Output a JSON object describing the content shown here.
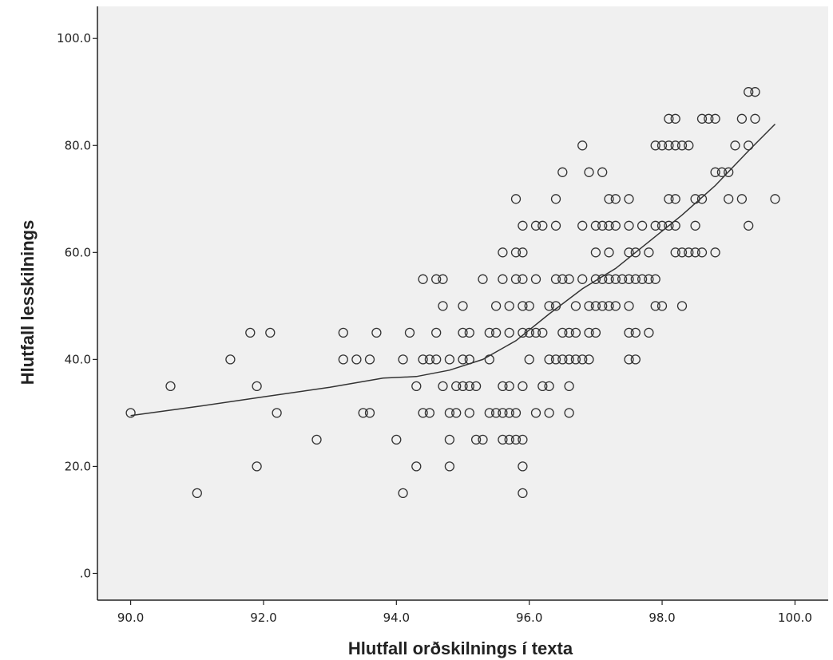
{
  "chart_data": {
    "type": "scatter",
    "title": "",
    "xlabel": "Hlutfall orðskilnings í texta",
    "ylabel": "Hlutfall lesskilnings",
    "xlim": [
      89.5,
      100.5
    ],
    "ylim": [
      -5,
      106
    ],
    "x_ticks": [
      90,
      92,
      94,
      96,
      98,
      100
    ],
    "x_tick_labels": [
      "90.0",
      "92.0",
      "94.0",
      "96.0",
      "98.0",
      "100.0"
    ],
    "y_ticks": [
      0,
      20,
      40,
      60,
      80,
      100
    ],
    "y_tick_labels": [
      ".0",
      "20.0",
      "40.0",
      "60.0",
      "80.0",
      "100.0"
    ],
    "grid": false,
    "legend": "none",
    "colors": {
      "background": "#f0f0f0",
      "marker": "#333333",
      "line": "#333333",
      "axis": "#222222"
    },
    "points": [
      [
        90.0,
        30
      ],
      [
        90.6,
        35
      ],
      [
        91.0,
        15
      ],
      [
        91.5,
        40
      ],
      [
        91.8,
        45
      ],
      [
        91.9,
        35
      ],
      [
        91.9,
        20
      ],
      [
        92.1,
        45
      ],
      [
        92.2,
        30
      ],
      [
        92.8,
        25
      ],
      [
        93.2,
        45
      ],
      [
        93.2,
        40
      ],
      [
        93.4,
        40
      ],
      [
        93.5,
        30
      ],
      [
        93.6,
        40
      ],
      [
        93.6,
        30
      ],
      [
        93.7,
        45
      ],
      [
        94.0,
        25
      ],
      [
        94.1,
        15
      ],
      [
        94.1,
        40
      ],
      [
        94.2,
        45
      ],
      [
        94.3,
        35
      ],
      [
        94.3,
        20
      ],
      [
        94.4,
        55
      ],
      [
        94.4,
        40
      ],
      [
        94.4,
        30
      ],
      [
        94.5,
        40
      ],
      [
        94.5,
        30
      ],
      [
        94.6,
        55
      ],
      [
        94.6,
        45
      ],
      [
        94.6,
        40
      ],
      [
        94.7,
        55
      ],
      [
        94.7,
        50
      ],
      [
        94.7,
        35
      ],
      [
        94.8,
        40
      ],
      [
        94.8,
        30
      ],
      [
        94.8,
        25
      ],
      [
        94.8,
        20
      ],
      [
        94.9,
        35
      ],
      [
        94.9,
        30
      ],
      [
        95.0,
        50
      ],
      [
        95.0,
        45
      ],
      [
        95.0,
        40
      ],
      [
        95.0,
        35
      ],
      [
        95.1,
        45
      ],
      [
        95.1,
        40
      ],
      [
        95.1,
        35
      ],
      [
        95.1,
        30
      ],
      [
        95.2,
        35
      ],
      [
        95.2,
        25
      ],
      [
        95.3,
        55
      ],
      [
        95.3,
        25
      ],
      [
        95.4,
        45
      ],
      [
        95.4,
        40
      ],
      [
        95.4,
        30
      ],
      [
        95.5,
        50
      ],
      [
        95.5,
        45
      ],
      [
        95.5,
        30
      ],
      [
        95.6,
        60
      ],
      [
        95.6,
        55
      ],
      [
        95.6,
        35
      ],
      [
        95.6,
        30
      ],
      [
        95.6,
        25
      ],
      [
        95.7,
        50
      ],
      [
        95.7,
        45
      ],
      [
        95.7,
        35
      ],
      [
        95.7,
        30
      ],
      [
        95.7,
        25
      ],
      [
        95.8,
        70
      ],
      [
        95.8,
        60
      ],
      [
        95.8,
        55
      ],
      [
        95.8,
        30
      ],
      [
        95.8,
        25
      ],
      [
        95.9,
        65
      ],
      [
        95.9,
        60
      ],
      [
        95.9,
        55
      ],
      [
        95.9,
        50
      ],
      [
        95.9,
        45
      ],
      [
        95.9,
        35
      ],
      [
        95.9,
        25
      ],
      [
        95.9,
        20
      ],
      [
        95.9,
        15
      ],
      [
        96.0,
        50
      ],
      [
        96.0,
        45
      ],
      [
        96.0,
        40
      ],
      [
        96.1,
        65
      ],
      [
        96.1,
        55
      ],
      [
        96.1,
        45
      ],
      [
        96.1,
        30
      ],
      [
        96.2,
        65
      ],
      [
        96.2,
        45
      ],
      [
        96.2,
        35
      ],
      [
        96.3,
        50
      ],
      [
        96.3,
        40
      ],
      [
        96.3,
        35
      ],
      [
        96.3,
        30
      ],
      [
        96.4,
        70
      ],
      [
        96.4,
        65
      ],
      [
        96.4,
        55
      ],
      [
        96.4,
        50
      ],
      [
        96.4,
        40
      ],
      [
        96.5,
        75
      ],
      [
        96.5,
        55
      ],
      [
        96.5,
        45
      ],
      [
        96.5,
        40
      ],
      [
        96.6,
        55
      ],
      [
        96.6,
        45
      ],
      [
        96.6,
        40
      ],
      [
        96.6,
        35
      ],
      [
        96.6,
        30
      ],
      [
        96.7,
        50
      ],
      [
        96.7,
        45
      ],
      [
        96.7,
        40
      ],
      [
        96.8,
        80
      ],
      [
        96.8,
        65
      ],
      [
        96.8,
        55
      ],
      [
        96.8,
        40
      ],
      [
        96.9,
        75
      ],
      [
        96.9,
        50
      ],
      [
        96.9,
        45
      ],
      [
        96.9,
        40
      ],
      [
        97.0,
        65
      ],
      [
        97.0,
        60
      ],
      [
        97.0,
        55
      ],
      [
        97.0,
        50
      ],
      [
        97.0,
        45
      ],
      [
        97.1,
        75
      ],
      [
        97.1,
        65
      ],
      [
        97.1,
        55
      ],
      [
        97.1,
        50
      ],
      [
        97.2,
        70
      ],
      [
        97.2,
        65
      ],
      [
        97.2,
        60
      ],
      [
        97.2,
        55
      ],
      [
        97.2,
        50
      ],
      [
        97.3,
        70
      ],
      [
        97.3,
        65
      ],
      [
        97.3,
        55
      ],
      [
        97.3,
        50
      ],
      [
        97.4,
        55
      ],
      [
        97.5,
        70
      ],
      [
        97.5,
        65
      ],
      [
        97.5,
        60
      ],
      [
        97.5,
        55
      ],
      [
        97.5,
        50
      ],
      [
        97.5,
        45
      ],
      [
        97.5,
        40
      ],
      [
        97.6,
        60
      ],
      [
        97.6,
        55
      ],
      [
        97.6,
        45
      ],
      [
        97.6,
        40
      ],
      [
        97.7,
        65
      ],
      [
        97.7,
        55
      ],
      [
        97.8,
        60
      ],
      [
        97.8,
        55
      ],
      [
        97.8,
        45
      ],
      [
        97.9,
        80
      ],
      [
        97.9,
        65
      ],
      [
        97.9,
        55
      ],
      [
        97.9,
        50
      ],
      [
        98.0,
        80
      ],
      [
        98.0,
        65
      ],
      [
        98.0,
        50
      ],
      [
        98.1,
        85
      ],
      [
        98.1,
        80
      ],
      [
        98.1,
        70
      ],
      [
        98.1,
        65
      ],
      [
        98.2,
        85
      ],
      [
        98.2,
        80
      ],
      [
        98.2,
        70
      ],
      [
        98.2,
        65
      ],
      [
        98.2,
        60
      ],
      [
        98.3,
        80
      ],
      [
        98.3,
        60
      ],
      [
        98.3,
        50
      ],
      [
        98.4,
        80
      ],
      [
        98.4,
        60
      ],
      [
        98.5,
        70
      ],
      [
        98.5,
        65
      ],
      [
        98.5,
        60
      ],
      [
        98.6,
        85
      ],
      [
        98.6,
        70
      ],
      [
        98.6,
        60
      ],
      [
        98.7,
        85
      ],
      [
        98.8,
        85
      ],
      [
        98.8,
        75
      ],
      [
        98.8,
        60
      ],
      [
        98.9,
        75
      ],
      [
        99.0,
        75
      ],
      [
        99.0,
        70
      ],
      [
        99.1,
        80
      ],
      [
        99.2,
        85
      ],
      [
        99.2,
        70
      ],
      [
        99.3,
        90
      ],
      [
        99.3,
        80
      ],
      [
        99.3,
        65
      ],
      [
        99.4,
        90
      ],
      [
        99.4,
        85
      ],
      [
        99.7,
        70
      ]
    ],
    "fit_line": {
      "x": [
        90.0,
        91.0,
        92.0,
        93.0,
        93.8,
        94.3,
        94.8,
        95.3,
        95.8,
        96.3,
        96.8,
        97.3,
        97.8,
        98.3,
        98.8,
        99.3,
        99.7
      ],
      "y": [
        29.5,
        31.2,
        33.0,
        34.8,
        36.5,
        36.8,
        38.0,
        40.0,
        43.5,
        48.5,
        53.2,
        57.0,
        62.0,
        67.0,
        72.5,
        79.0,
        84.0
      ]
    }
  }
}
